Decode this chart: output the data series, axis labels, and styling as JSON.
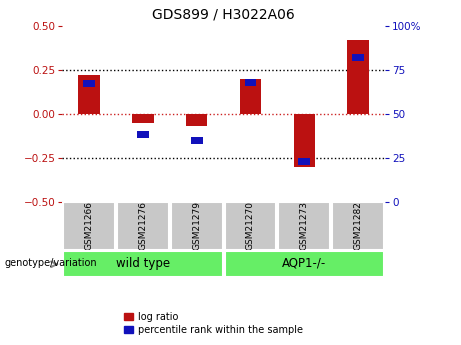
{
  "title": "GDS899 / H3022A06",
  "samples": [
    "GSM21266",
    "GSM21276",
    "GSM21279",
    "GSM21270",
    "GSM21273",
    "GSM21282"
  ],
  "log_ratios": [
    0.22,
    -0.05,
    -0.07,
    0.2,
    -0.3,
    0.42
  ],
  "percentile_ranks": [
    67,
    38,
    35,
    68,
    23,
    82
  ],
  "group_defs": [
    {
      "label": "wild type",
      "indices": [
        0,
        1,
        2
      ],
      "color": "#66EE66"
    },
    {
      "label": "AQP1-/-",
      "indices": [
        3,
        4,
        5
      ],
      "color": "#66EE66"
    }
  ],
  "ylim_left": [
    -0.5,
    0.5
  ],
  "ylim_right": [
    0,
    100
  ],
  "yticks_left": [
    -0.5,
    -0.25,
    0,
    0.25,
    0.5
  ],
  "yticks_right": [
    0,
    25,
    50,
    75,
    100
  ],
  "hlines_black": [
    0.25,
    -0.25
  ],
  "hline_red": 0,
  "bar_color_red": "#BB1111",
  "bar_color_blue": "#1111BB",
  "bar_width": 0.4,
  "blue_bar_width": 0.22,
  "blue_bar_height": 0.04,
  "legend_labels": [
    "log ratio",
    "percentile rank within the sample"
  ],
  "genotype_label": "genotype/variation",
  "background_color": "#ffffff",
  "zero_line_color": "#CC2222",
  "title_fontsize": 10,
  "tick_fontsize": 7.5,
  "sample_fontsize": 6.5,
  "group_fontsize": 8.5,
  "legend_fontsize": 7
}
